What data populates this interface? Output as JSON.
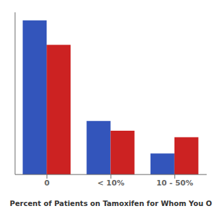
{
  "chart_data": {
    "type": "bar",
    "xlabel": "Percent of Patients on Tamoxifen for Whom You O",
    "categories": [
      "0",
      "< 10%",
      "10 - 50%"
    ],
    "series": [
      {
        "color": "#3355BB",
        "values": [
          95,
          33,
          13
        ]
      },
      {
        "color": "#CC2222",
        "values": [
          80,
          27,
          23
        ]
      }
    ],
    "ylim": [
      0,
      100
    ],
    "tick_labels": "x",
    "grid": false
  }
}
